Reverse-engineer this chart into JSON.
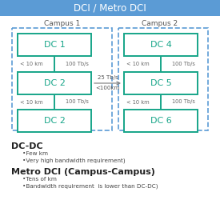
{
  "title": "DCI / Metro DCI",
  "title_bg": "#5b9bd5",
  "title_color": "white",
  "campus1_label": "Campus 1",
  "campus2_label": "Campus 2",
  "dc_left": [
    "DC 1",
    "DC 2",
    "DC 2"
  ],
  "dc_right": [
    "DC 4",
    "DC 5",
    "DC 6"
  ],
  "dc_box_edge": "#17a589",
  "dc_text_color": "#17a589",
  "campus_dash_color": "#5b9bd5",
  "link_color": "#17a589",
  "arrow_color": "#888888",
  "left_labels": [
    "< 10 km",
    "< 10 km"
  ],
  "left_bw": [
    "100 Tb/s",
    "100 Tb/s"
  ],
  "right_labels": [
    "< 10 km",
    "< 10 km"
  ],
  "right_bw": [
    "100 Tb/s",
    "100 Tb/s"
  ],
  "inter_bw": "25 Tb/s",
  "inter_dist": "<100km",
  "dcdc_title": "DC-DC",
  "dcdc_bullets": [
    "•Few km",
    "•Very high bandwidth requirement)"
  ],
  "metro_title": "Metro DCI (Campus-Campus)",
  "metro_bullets": [
    "•Tens of km",
    "•Bandwidth requirement  is lower than DC-DC)"
  ]
}
